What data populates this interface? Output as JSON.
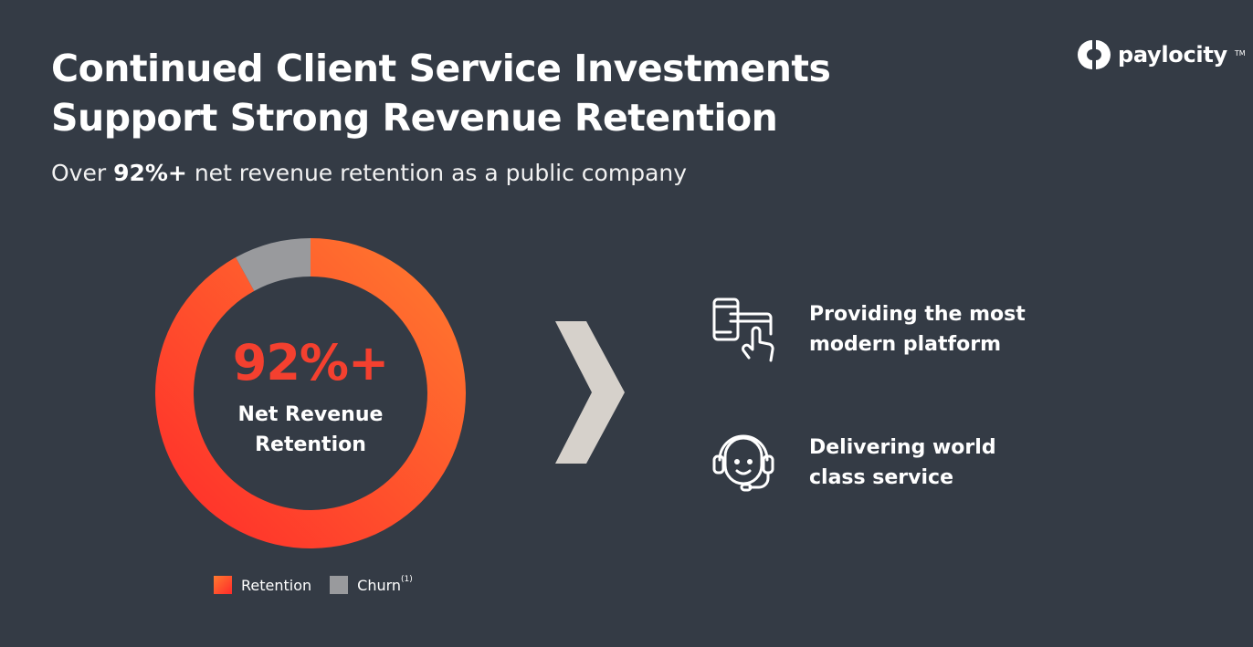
{
  "header": {
    "title_line1": "Continued Client Service Investments",
    "title_line2": "Support Strong Revenue Retention",
    "subtitle_prefix": "Over ",
    "subtitle_bold": "92%+",
    "subtitle_suffix": " net revenue retention as a public company"
  },
  "logo": {
    "text": "paylocity",
    "mark": "TM",
    "icon": "paylocity-logo-icon"
  },
  "chart_data": {
    "type": "pie",
    "style": "donut",
    "labels": [
      "Retention",
      "Churn"
    ],
    "values": [
      92,
      8
    ],
    "unit": "%",
    "colors": [
      "#ff4a2a",
      "#999a9d"
    ],
    "center_value": "92%+",
    "center_label_line1": "Net Revenue",
    "center_label_line2": "Retention",
    "legend": [
      {
        "label": "Retention",
        "color": "#ff4a2a"
      },
      {
        "label": "Churn",
        "superscript": "(1)",
        "color": "#999a9d"
      }
    ],
    "legend_position": "bottom"
  },
  "features": [
    {
      "line1": "Providing the most",
      "line2": "modern platform",
      "icon": "touch-devices-icon"
    },
    {
      "line1": "Delivering world",
      "line2": "class service",
      "icon": "headset-support-icon"
    }
  ],
  "colors": {
    "background": "#343b45",
    "accent": "#f4402f",
    "chevron": "#d6d1cb"
  }
}
